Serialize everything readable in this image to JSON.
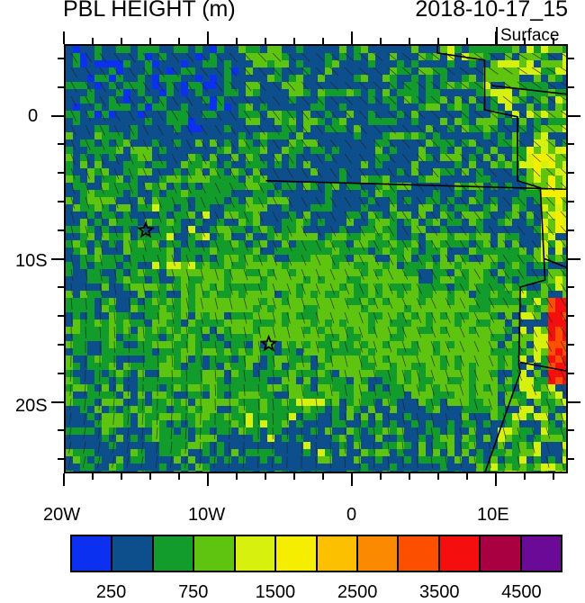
{
  "header": {
    "title_left": "PBL HEIGHT (m)",
    "title_right": "2018-10-17_15",
    "level": "Surface"
  },
  "axes": {
    "x_labels": [
      "20W",
      "10W",
      "0",
      "10E"
    ],
    "y_labels": [
      "0",
      "10S",
      "20S"
    ]
  },
  "map": {
    "lon_range": [
      -20,
      15
    ],
    "lat_range": [
      -25,
      5
    ],
    "station_markers": [
      {
        "lon": -14.4,
        "lat": -8.0
      },
      {
        "lon": -5.8,
        "lat": -16.0
      }
    ]
  },
  "colorbar": {
    "colors": [
      "#0b30f0",
      "#0c4f8c",
      "#119c2b",
      "#5ec40f",
      "#d8f00e",
      "#f5ee00",
      "#fcc000",
      "#fc8a00",
      "#fc5000",
      "#f50e0e",
      "#a80040",
      "#6a0a96"
    ],
    "labels": [
      "250",
      "750",
      "1500",
      "2500",
      "3500",
      "4500"
    ]
  }
}
